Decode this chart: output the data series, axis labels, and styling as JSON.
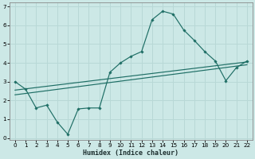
{
  "xlabel": "Humidex (Indice chaleur)",
  "bg_color": "#cce8e6",
  "grid_color": "#b8d8d6",
  "line_color": "#1e6e65",
  "x_data": [
    0,
    1,
    2,
    3,
    4,
    5,
    6,
    7,
    8,
    9,
    10,
    11,
    12,
    13,
    14,
    15,
    16,
    17,
    18,
    19,
    20,
    21,
    22
  ],
  "y_curve": [
    3.0,
    2.6,
    1.6,
    1.75,
    0.85,
    0.2,
    1.55,
    1.6,
    1.6,
    3.5,
    4.0,
    4.35,
    4.6,
    6.3,
    6.75,
    6.6,
    5.75,
    5.2,
    4.6,
    4.1,
    3.05,
    3.75,
    4.1
  ],
  "ylim": [
    -0.1,
    7.2
  ],
  "xlim": [
    -0.5,
    22.5
  ],
  "yticks": [
    0,
    1,
    2,
    3,
    4,
    5,
    6,
    7
  ],
  "xticks": [
    0,
    1,
    2,
    3,
    4,
    5,
    6,
    7,
    8,
    9,
    10,
    11,
    12,
    13,
    14,
    15,
    16,
    17,
    18,
    19,
    20,
    21,
    22
  ],
  "trend1_x": [
    0,
    22
  ],
  "trend1_y": [
    2.55,
    4.05
  ],
  "trend2_x": [
    0,
    22
  ],
  "trend2_y": [
    2.3,
    3.9
  ]
}
